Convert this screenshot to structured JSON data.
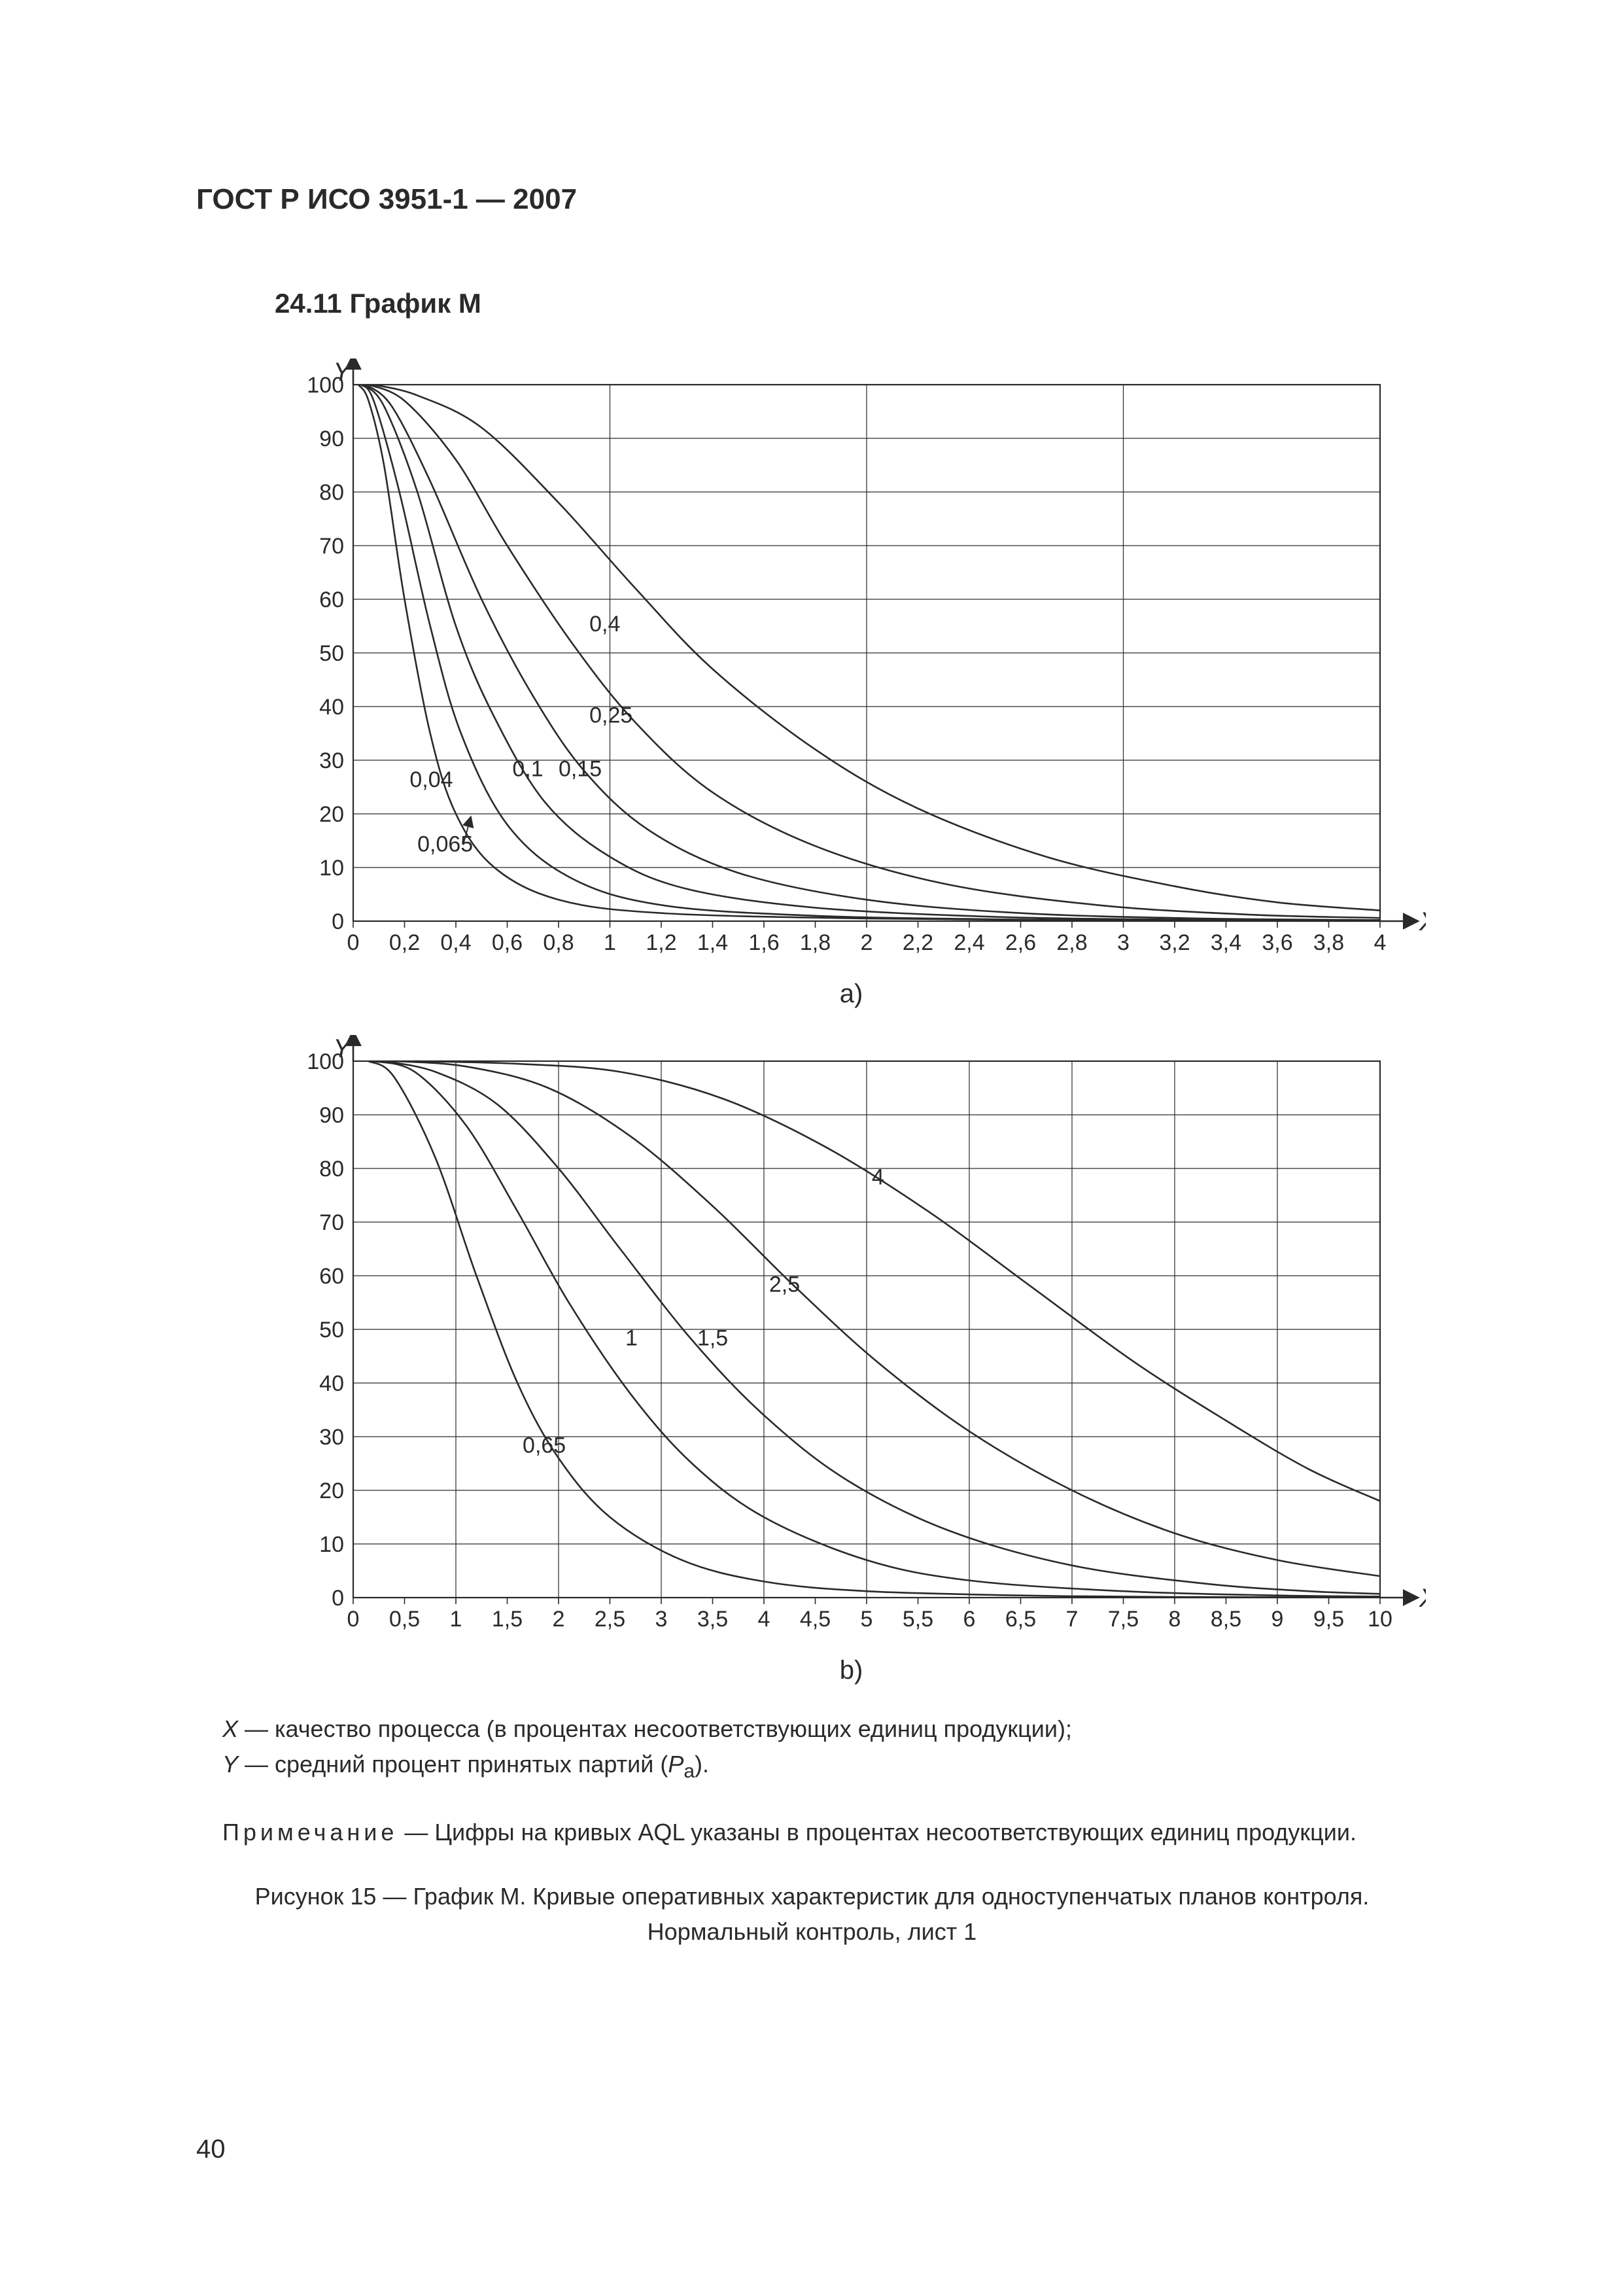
{
  "doc": {
    "header": "ГОСТ Р ИСО 3951-1 — 2007",
    "section_title": "24.11 График М",
    "page_number": "40"
  },
  "chart_a": {
    "type": "line",
    "sub_label": "a)",
    "y_axis_label": "Y",
    "x_axis_label": "X",
    "xlim": [
      0,
      4
    ],
    "ylim": [
      0,
      100
    ],
    "x_major_step": 1,
    "x_minor_step": 0.2,
    "y_major_step": 10,
    "x_ticks": [
      "0",
      "0,2",
      "0,4",
      "0,6",
      "0,8",
      "1",
      "1,2",
      "1,4",
      "1,6",
      "1,8",
      "2",
      "2,2",
      "2,4",
      "2,6",
      "2,8",
      "3",
      "3,2",
      "3,4",
      "3,6",
      "3,8",
      "4"
    ],
    "y_ticks": [
      "0",
      "10",
      "20",
      "30",
      "40",
      "50",
      "60",
      "70",
      "80",
      "90",
      "100"
    ],
    "grid_color": "#2a2a2a",
    "axis_color": "#2a2a2a",
    "background_color": "#ffffff",
    "line_color": "#2a2a2a",
    "line_width": 2.6,
    "axis_fontsize": 34,
    "tick_fontsize": 34,
    "curve_label_fontsize": 34,
    "series": [
      {
        "label": "0,04",
        "label_xy": [
          0.22,
          25
        ],
        "points": [
          [
            0.02,
            100
          ],
          [
            0.06,
            97
          ],
          [
            0.12,
            85
          ],
          [
            0.2,
            60
          ],
          [
            0.3,
            35
          ],
          [
            0.4,
            20
          ],
          [
            0.55,
            10
          ],
          [
            0.8,
            4
          ],
          [
            1.2,
            1.5
          ],
          [
            2.0,
            0.5
          ],
          [
            3.0,
            0.15
          ],
          [
            4.0,
            0.05
          ]
        ]
      },
      {
        "label": "0,065",
        "label_xy": [
          0.25,
          13
        ],
        "arrow_to": [
          0.45,
          18
        ],
        "points": [
          [
            0.03,
            100
          ],
          [
            0.08,
            97
          ],
          [
            0.18,
            80
          ],
          [
            0.3,
            55
          ],
          [
            0.42,
            35
          ],
          [
            0.6,
            18
          ],
          [
            0.85,
            8
          ],
          [
            1.2,
            3
          ],
          [
            1.8,
            1
          ],
          [
            2.6,
            0.3
          ],
          [
            3.4,
            0.1
          ],
          [
            4.0,
            0.05
          ]
        ]
      },
      {
        "label": "0,1",
        "label_xy": [
          0.62,
          27
        ],
        "points": [
          [
            0.04,
            100
          ],
          [
            0.12,
            96
          ],
          [
            0.25,
            80
          ],
          [
            0.4,
            55
          ],
          [
            0.55,
            38
          ],
          [
            0.75,
            22
          ],
          [
            1.0,
            12
          ],
          [
            1.3,
            6
          ],
          [
            1.8,
            2.5
          ],
          [
            2.5,
            0.8
          ],
          [
            3.2,
            0.3
          ],
          [
            4.0,
            0.1
          ]
        ]
      },
      {
        "label": "0,15",
        "label_xy": [
          0.8,
          27
        ],
        "points": [
          [
            0.05,
            100
          ],
          [
            0.15,
            96
          ],
          [
            0.3,
            82
          ],
          [
            0.5,
            60
          ],
          [
            0.7,
            42
          ],
          [
            0.9,
            28
          ],
          [
            1.15,
            17
          ],
          [
            1.5,
            9
          ],
          [
            2.0,
            4
          ],
          [
            2.6,
            1.5
          ],
          [
            3.3,
            0.5
          ],
          [
            4.0,
            0.2
          ]
        ]
      },
      {
        "label": "0,25",
        "label_xy": [
          0.92,
          37
        ],
        "points": [
          [
            0.06,
            100
          ],
          [
            0.2,
            97
          ],
          [
            0.4,
            86
          ],
          [
            0.6,
            70
          ],
          [
            0.85,
            52
          ],
          [
            1.1,
            37
          ],
          [
            1.4,
            24
          ],
          [
            1.8,
            14
          ],
          [
            2.3,
            7
          ],
          [
            2.9,
            3
          ],
          [
            3.5,
            1.2
          ],
          [
            4.0,
            0.6
          ]
        ]
      },
      {
        "label": "0,4",
        "label_xy": [
          0.92,
          54
        ],
        "points": [
          [
            0.08,
            100
          ],
          [
            0.25,
            98
          ],
          [
            0.5,
            92
          ],
          [
            0.8,
            78
          ],
          [
            1.1,
            62
          ],
          [
            1.4,
            47
          ],
          [
            1.8,
            32
          ],
          [
            2.2,
            21
          ],
          [
            2.7,
            12
          ],
          [
            3.2,
            6.5
          ],
          [
            3.6,
            3.5
          ],
          [
            4.0,
            2
          ]
        ]
      }
    ]
  },
  "chart_b": {
    "type": "line",
    "sub_label": "b)",
    "y_axis_label": "Y",
    "x_axis_label": "X",
    "xlim": [
      0,
      10
    ],
    "ylim": [
      0,
      100
    ],
    "x_major_step": 1,
    "x_minor_step": 0.5,
    "y_major_step": 10,
    "x_ticks": [
      "0",
      "0,5",
      "1",
      "1,5",
      "2",
      "2,5",
      "3",
      "3,5",
      "4",
      "4,5",
      "5",
      "5,5",
      "6",
      "6,5",
      "7",
      "7,5",
      "8",
      "8,5",
      "9",
      "9,5",
      "10"
    ],
    "y_ticks": [
      "0",
      "10",
      "20",
      "30",
      "40",
      "50",
      "60",
      "70",
      "80",
      "90",
      "100"
    ],
    "grid_color": "#2a2a2a",
    "axis_color": "#2a2a2a",
    "background_color": "#ffffff",
    "line_color": "#2a2a2a",
    "line_width": 2.6,
    "axis_fontsize": 34,
    "tick_fontsize": 34,
    "curve_label_fontsize": 34,
    "series": [
      {
        "label": "0,65",
        "label_xy": [
          1.65,
          27
        ],
        "points": [
          [
            0.15,
            100
          ],
          [
            0.4,
            97
          ],
          [
            0.8,
            82
          ],
          [
            1.2,
            60
          ],
          [
            1.6,
            40
          ],
          [
            2.0,
            26
          ],
          [
            2.5,
            15
          ],
          [
            3.2,
            7
          ],
          [
            4.0,
            3
          ],
          [
            5.0,
            1.2
          ],
          [
            6.5,
            0.4
          ],
          [
            8.0,
            0.12
          ],
          [
            10.0,
            0.04
          ]
        ]
      },
      {
        "label": "1",
        "label_xy": [
          2.65,
          47
        ],
        "points": [
          [
            0.2,
            100
          ],
          [
            0.6,
            98
          ],
          [
            1.1,
            88
          ],
          [
            1.6,
            72
          ],
          [
            2.1,
            55
          ],
          [
            2.7,
            38
          ],
          [
            3.3,
            25
          ],
          [
            4.0,
            15
          ],
          [
            5.0,
            7
          ],
          [
            6.0,
            3.2
          ],
          [
            7.5,
            1.2
          ],
          [
            9.0,
            0.4
          ],
          [
            10.0,
            0.2
          ]
        ]
      },
      {
        "label": "1,5",
        "label_xy": [
          3.35,
          47
        ],
        "points": [
          [
            0.3,
            100
          ],
          [
            0.8,
            98
          ],
          [
            1.4,
            92
          ],
          [
            2.0,
            80
          ],
          [
            2.6,
            65
          ],
          [
            3.3,
            48
          ],
          [
            4.0,
            34
          ],
          [
            4.8,
            22
          ],
          [
            5.8,
            12.5
          ],
          [
            7.0,
            6
          ],
          [
            8.3,
            2.6
          ],
          [
            9.3,
            1.2
          ],
          [
            10.0,
            0.7
          ]
        ]
      },
      {
        "label": "2,5",
        "label_xy": [
          4.05,
          57
        ],
        "points": [
          [
            0.4,
            100
          ],
          [
            1.1,
            99
          ],
          [
            1.9,
            95
          ],
          [
            2.7,
            86
          ],
          [
            3.5,
            73
          ],
          [
            4.3,
            58
          ],
          [
            5.1,
            44
          ],
          [
            6.0,
            31
          ],
          [
            7.0,
            20
          ],
          [
            8.0,
            12
          ],
          [
            9.0,
            7
          ],
          [
            10.0,
            4
          ]
        ]
      },
      {
        "label": "4",
        "label_xy": [
          5.05,
          77
        ],
        "points": [
          [
            0.6,
            100
          ],
          [
            1.6,
            99.5
          ],
          [
            2.6,
            98
          ],
          [
            3.6,
            93
          ],
          [
            4.6,
            84
          ],
          [
            5.6,
            72
          ],
          [
            6.6,
            58
          ],
          [
            7.6,
            44
          ],
          [
            8.5,
            33
          ],
          [
            9.3,
            24
          ],
          [
            10.0,
            18
          ]
        ]
      }
    ]
  },
  "legend": {
    "x_line_prefix": "X",
    "x_line_text": " — качество процесса (в процентах несоответствующих единиц продукции);",
    "y_line_prefix": "Y",
    "y_line_text_1": " — средний процент принятых партий (",
    "y_line_var": "P",
    "y_line_sub": "a",
    "y_line_text_2": ")."
  },
  "note": {
    "key": "Примечание",
    "text": " — Цифры на кривых AQL указаны в процентах  несоответствующих единиц продукции."
  },
  "caption": {
    "line1": "Рисунок 15 — График М. Кривые оперативных характеристик для одноступенчатых планов контроля.",
    "line2": "Нормальный контроль, лист 1"
  }
}
